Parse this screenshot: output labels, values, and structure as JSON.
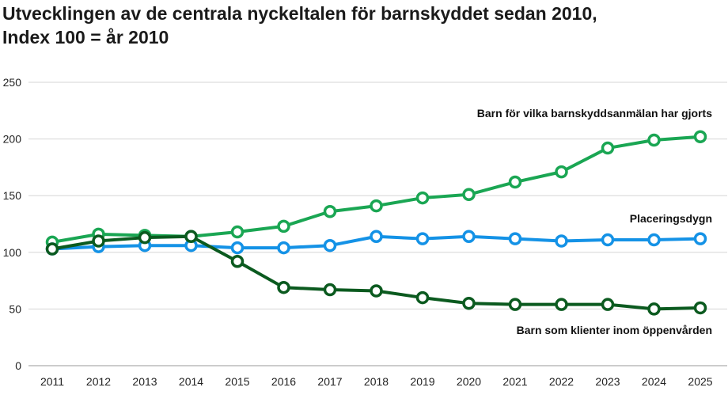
{
  "title_lines": [
    "Utvecklingen av de centrala nyckeltalen för barnskyddet sedan 2010,",
    "Index 100 =  år 2010"
  ],
  "colors": {
    "light_green": "#1aa653",
    "blue": "#1492e6",
    "dark_green": "#0b5a1f",
    "grid": "#d6d6d6"
  },
  "chart_data": {
    "type": "line",
    "title": "Utvecklingen av de centrala nyckeltalen för barnskyddet sedan 2010, Index 100 =  år 2010",
    "xlabel": "",
    "ylabel": "",
    "x": [
      "2011",
      "2012",
      "2013",
      "2014",
      "2015",
      "2016",
      "2017",
      "2018",
      "2019",
      "2020",
      "2021",
      "2022",
      "2023",
      "2024",
      "2025"
    ],
    "ylim": [
      0,
      250
    ],
    "yticks": [
      0,
      50,
      100,
      150,
      200,
      250
    ],
    "grid": true,
    "legend": "direct labels",
    "series": [
      {
        "name": "Barn för vilka barnskyddsanmälan har gjorts",
        "color": "#1aa653",
        "values": [
          109,
          116,
          115,
          114,
          118,
          123,
          136,
          141,
          148,
          151,
          162,
          171,
          192,
          199,
          202
        ]
      },
      {
        "name": "Placeringsdygn",
        "color": "#1492e6",
        "values": [
          103,
          105,
          106,
          106,
          104,
          104,
          106,
          114,
          112,
          114,
          112,
          110,
          111,
          111,
          112
        ]
      },
      {
        "name": "Barn som klienter inom öppenvården",
        "color": "#0b5a1f",
        "values": [
          103,
          110,
          113,
          114,
          92,
          69,
          67,
          66,
          60,
          55,
          54,
          54,
          54,
          50,
          51
        ]
      }
    ]
  }
}
